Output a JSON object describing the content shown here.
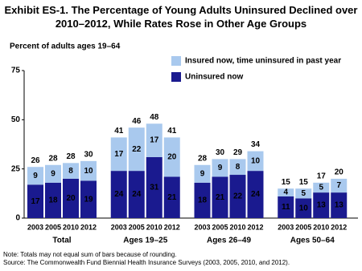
{
  "chart_data": {
    "type": "stacked-bar",
    "title": "Exhibit ES-1. The Percentage of Young Adults Uninsured Declined over 2010–2012, While Rates Rose in Other Age Groups",
    "y_axis_label": "Percent of adults ages 19–64",
    "groups": [
      "Total",
      "Ages 19–25",
      "Ages 26–49",
      "Ages 50–64"
    ],
    "categories": [
      "2003",
      "2005",
      "2010",
      "2012",
      "2003",
      "2005",
      "2010",
      "2012",
      "2003",
      "2005",
      "2010",
      "2012",
      "2003",
      "2005",
      "2010",
      "2012"
    ],
    "series": [
      {
        "name": "Uninsured now",
        "color": "#1a1a8f",
        "values": [
          17,
          18,
          20,
          19,
          24,
          24,
          31,
          21,
          18,
          21,
          22,
          24,
          11,
          10,
          13,
          13
        ]
      },
      {
        "name": "Insured now, time uninsured in past year",
        "color": "#a9c9ee",
        "values": [
          9,
          9,
          8,
          10,
          17,
          22,
          17,
          20,
          9,
          9,
          8,
          10,
          4,
          5,
          5,
          7
        ]
      }
    ],
    "totals": [
      26,
      28,
      28,
      30,
      41,
      46,
      48,
      41,
      28,
      30,
      29,
      34,
      15,
      15,
      17,
      20
    ],
    "ylim": [
      0,
      75
    ],
    "yticks": [
      0,
      25,
      50,
      75
    ],
    "notes": [
      "Note: Totals may not equal sum of bars because of rounding.",
      "Source: The Commonwealth Fund Biennial Health Insurance Surveys (2003, 2005, 2010, and 2012)."
    ]
  }
}
